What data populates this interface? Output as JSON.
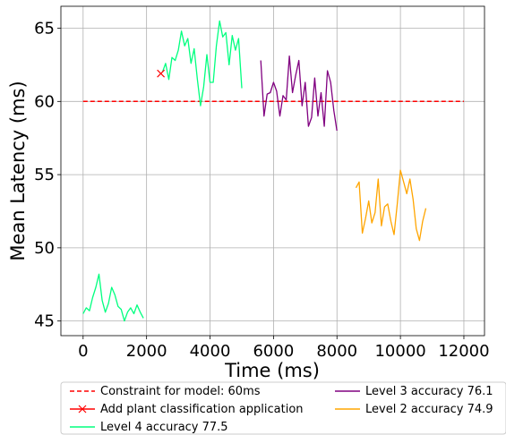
{
  "chart_data": {
    "type": "line",
    "xlabel": "Time (ms)",
    "ylabel": "Mean Latency (ms)",
    "xlim": [
      -700,
      12650
    ],
    "ylim": [
      44,
      66.5
    ],
    "xticks": [
      0,
      2000,
      4000,
      6000,
      8000,
      10000,
      12000
    ],
    "yticks": [
      45,
      50,
      55,
      60,
      65
    ],
    "grid": true,
    "legend_position": "below",
    "constraint": {
      "name": "Constraint for model: 60ms",
      "color": "#ff0000",
      "y": 60,
      "x": [
        0,
        12000
      ]
    },
    "marker": {
      "name": "Add plant classification application",
      "color": "#ff0000",
      "x": 2450,
      "y": 61.9
    },
    "series": [
      {
        "name": "Level 4 accuracy 77.5",
        "color": "#00ff7f",
        "x": [
          0,
          100,
          200,
          300,
          400,
          500,
          600,
          700,
          800,
          900,
          1000,
          1100,
          1200,
          1300,
          1400,
          1500,
          1600,
          1700,
          1800,
          1900
        ],
        "y": [
          45.5,
          45.9,
          45.7,
          46.6,
          47.3,
          48.2,
          46.4,
          45.6,
          46.2,
          47.3,
          46.8,
          46.0,
          45.8,
          45.0,
          45.6,
          45.9,
          45.5,
          46.1,
          45.6,
          45.2
        ]
      },
      {
        "name": "Level 4 accuracy 77.5",
        "color": "#00ff7f",
        "x": [
          2500,
          2600,
          2700,
          2800,
          2900,
          3000,
          3100,
          3200,
          3300,
          3400,
          3500,
          3600,
          3700,
          3800,
          3900,
          4000,
          4100,
          4200,
          4300,
          4400,
          4500,
          4600,
          4700,
          4800,
          4900,
          5000
        ],
        "y": [
          62.0,
          62.6,
          61.5,
          63.0,
          62.8,
          63.5,
          64.8,
          63.8,
          64.3,
          62.6,
          63.6,
          61.5,
          59.7,
          61.0,
          63.2,
          61.3,
          61.3,
          63.8,
          65.5,
          64.4,
          64.7,
          62.5,
          64.5,
          63.5,
          64.3,
          60.9
        ]
      },
      {
        "name": "Level 3 accuracy 76.1",
        "color": "#800080",
        "x": [
          5600,
          5700,
          5800,
          5900,
          6000,
          6100,
          6200,
          6300,
          6400,
          6500,
          6600,
          6700,
          6800,
          6900,
          7000,
          7100,
          7200,
          7300,
          7400,
          7500,
          7600,
          7700,
          7800,
          7900,
          8000
        ],
        "y": [
          62.8,
          59.0,
          60.5,
          60.6,
          61.3,
          60.7,
          59.0,
          60.4,
          60.1,
          63.1,
          60.6,
          61.8,
          62.8,
          59.7,
          61.3,
          58.3,
          58.9,
          61.6,
          59.0,
          60.6,
          58.3,
          62.1,
          61.3,
          59.4,
          58.0
        ]
      },
      {
        "name": "Level 2 accuracy 74.9",
        "color": "#ffa500",
        "x": [
          8600,
          8700,
          8800,
          8900,
          9000,
          9100,
          9200,
          9300,
          9400,
          9500,
          9600,
          9700,
          9800,
          9900,
          10000,
          10100,
          10200,
          10300,
          10400,
          10500,
          10600,
          10700,
          10800
        ],
        "y": [
          54.1,
          54.5,
          51.0,
          52.0,
          53.2,
          51.7,
          52.4,
          54.7,
          51.5,
          52.8,
          53.0,
          51.8,
          50.9,
          53.0,
          55.3,
          54.5,
          53.7,
          54.7,
          53.3,
          51.3,
          50.5,
          51.8,
          52.7
        ]
      }
    ],
    "legend": [
      {
        "label": "Constraint for model: 60ms",
        "color": "#ff0000",
        "style": "dashed"
      },
      {
        "label": "Add plant classification application",
        "color": "#ff0000",
        "style": "marker-x"
      },
      {
        "label": "Level 4 accuracy 77.5",
        "color": "#00ff7f",
        "style": "solid"
      },
      {
        "label": "Level 3 accuracy 76.1",
        "color": "#800080",
        "style": "solid"
      },
      {
        "label": "Level 2 accuracy 74.9",
        "color": "#ffa500",
        "style": "solid"
      }
    ]
  }
}
